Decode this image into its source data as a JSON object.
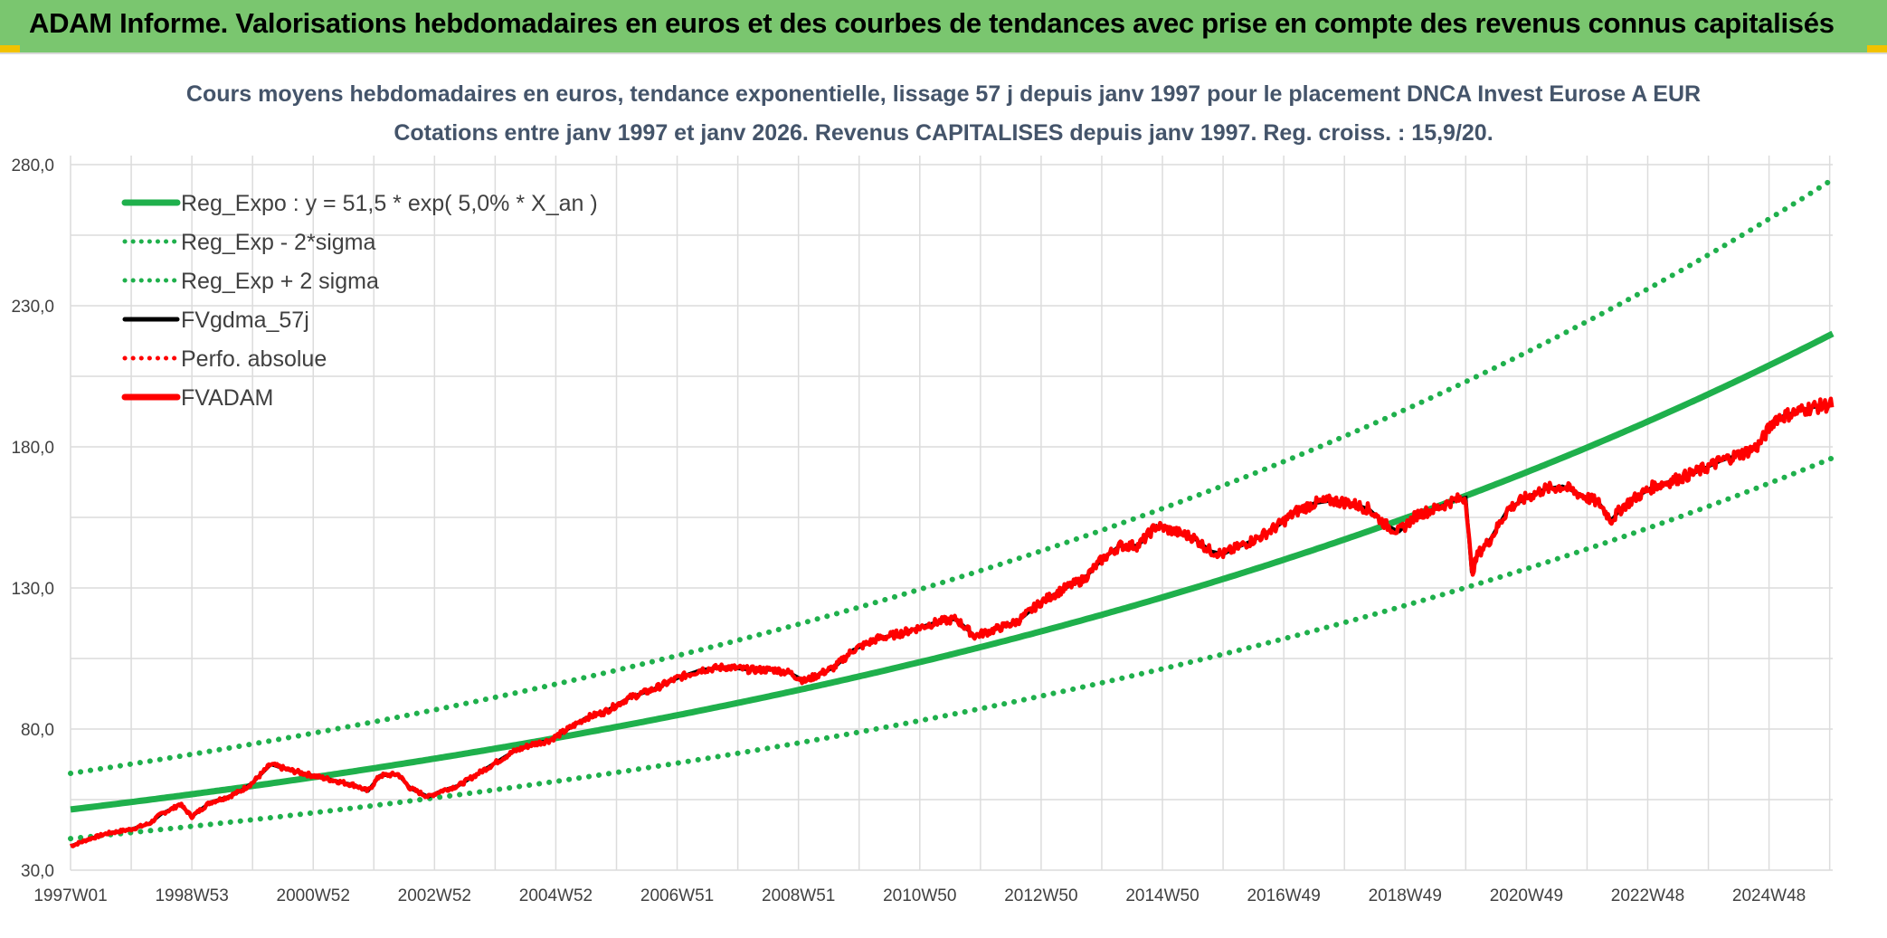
{
  "header": {
    "banner_title": "ADAM Informe. Valorisations hebdomadaires en euros et des courbes de tendances avec prise en compte des revenus connus capitalisés",
    "banner_color": "#7ac66f",
    "corner_color": "#f2c200"
  },
  "chart_data": {
    "type": "line",
    "title": "Cours moyens hebdomadaires en euros, tendance exponentielle, lissage 57 j depuis janv 1997 pour le placement DNCA Invest Eurose A EUR",
    "subtitle": "Cotations entre janv 1997 et janv 2026. Revenus CAPITALISES depuis janv 1997. Reg. croiss. : 15,9/20.",
    "xlabel": "",
    "ylabel": "",
    "ylim": [
      30,
      280
    ],
    "xlim": [
      1997.0,
      2026.05
    ],
    "grid": true,
    "legend_position": "top-left",
    "y_ticks": [
      "30,0",
      "80,0",
      "130,0",
      "180,0",
      "230,0",
      "280,0"
    ],
    "y_tick_values": [
      30,
      80,
      130,
      180,
      230,
      280
    ],
    "x_ticks": [
      "1997W01",
      "1998W53",
      "2000W52",
      "2002W52",
      "2004W52",
      "2006W51",
      "2008W51",
      "2010W50",
      "2012W50",
      "2014W50",
      "2016W49",
      "2018W49",
      "2020W49",
      "2022W48",
      "2024W48"
    ],
    "x_tick_positions": [
      1997.0,
      1999.0,
      2001.0,
      2003.0,
      2005.0,
      2007.0,
      2009.0,
      2011.0,
      2013.0,
      2015.0,
      2017.0,
      2019.0,
      2021.0,
      2023.0,
      2025.0
    ],
    "series": [
      {
        "name": "Reg_Expo : y = 51,5 * exp( 5,0% *  X_an )",
        "style": "solid-thick",
        "color": "#1fb04c",
        "function": "exp",
        "a": 51.5,
        "rate": 0.05,
        "x0": 1997.0
      },
      {
        "name": "Reg_Exp - 2*sigma",
        "style": "dotted",
        "color": "#1fb04c",
        "function": "exp",
        "a": 41.2,
        "rate": 0.05,
        "x0": 1997.0
      },
      {
        "name": "Reg_Exp + 2 sigma",
        "style": "dotted",
        "color": "#1fb04c",
        "function": "exp",
        "a": 64.3,
        "rate": 0.05,
        "x0": 1997.0
      },
      {
        "name": "FVgdma_57j",
        "style": "solid",
        "color": "#000000"
      },
      {
        "name": "Perfo. absolue",
        "style": "dotted",
        "color": "#ff0000"
      },
      {
        "name": "FVADAM",
        "style": "solid-thick",
        "color": "#ff0000"
      }
    ],
    "price_points": {
      "x": [
        1997.0,
        1997.3,
        1997.6,
        1998.0,
        1998.3,
        1998.5,
        1998.7,
        1998.8,
        1999.0,
        1999.3,
        1999.6,
        1999.8,
        2000.0,
        2000.3,
        2000.6,
        2000.9,
        2001.2,
        2001.5,
        2001.7,
        2001.9,
        2002.1,
        2002.4,
        2002.6,
        2002.9,
        2003.1,
        2003.4,
        2003.7,
        2004.0,
        2004.3,
        2004.6,
        2004.9,
        2005.2,
        2005.5,
        2005.8,
        2006.2,
        2006.6,
        2007.0,
        2007.4,
        2007.8,
        2008.2,
        2008.6,
        2008.85,
        2009.1,
        2009.3,
        2009.6,
        2009.9,
        2010.3,
        2010.7,
        2011.0,
        2011.3,
        2011.6,
        2011.9,
        2012.2,
        2012.6,
        2013.0,
        2013.4,
        2013.7,
        2014.0,
        2014.3,
        2014.6,
        2014.9,
        2015.2,
        2015.5,
        2015.8,
        2016.0,
        2016.3,
        2016.6,
        2016.9,
        2017.2,
        2017.5,
        2017.8,
        2018.1,
        2018.4,
        2018.7,
        2018.9,
        2019.2,
        2019.5,
        2019.8,
        2020.0,
        2020.1,
        2020.2,
        2020.4,
        2020.7,
        2021.0,
        2021.3,
        2021.6,
        2021.9,
        2022.2,
        2022.4,
        2022.6,
        2022.8,
        2023.1,
        2023.4,
        2023.8,
        2024.2,
        2024.6,
        2024.8,
        2024.9,
        2025.1,
        2025.4,
        2025.7,
        2026.05
      ],
      "y": [
        38.5,
        41,
        43,
        44.5,
        46.5,
        50,
        52,
        53.5,
        49,
        54,
        56,
        58,
        61,
        67.5,
        65.5,
        64,
        62.5,
        61,
        60,
        58,
        63.5,
        64,
        59,
        56,
        58,
        60,
        64,
        68,
        72,
        74.5,
        76,
        80,
        84,
        86,
        91,
        94,
        98,
        101,
        102,
        101,
        101,
        100,
        97,
        99,
        102,
        108,
        112,
        114,
        116,
        118,
        119,
        113,
        115,
        118,
        125,
        130,
        133,
        140,
        145,
        145,
        152,
        150,
        148,
        143,
        142,
        145,
        148,
        152,
        157,
        160,
        161,
        160,
        158,
        152,
        150,
        156,
        158,
        161,
        162,
        135,
        142,
        147,
        158,
        162,
        165,
        166,
        163,
        160,
        154,
        159,
        162,
        166,
        168,
        171,
        175,
        178,
        180,
        183,
        190,
        192,
        194,
        195
      ]
    }
  }
}
